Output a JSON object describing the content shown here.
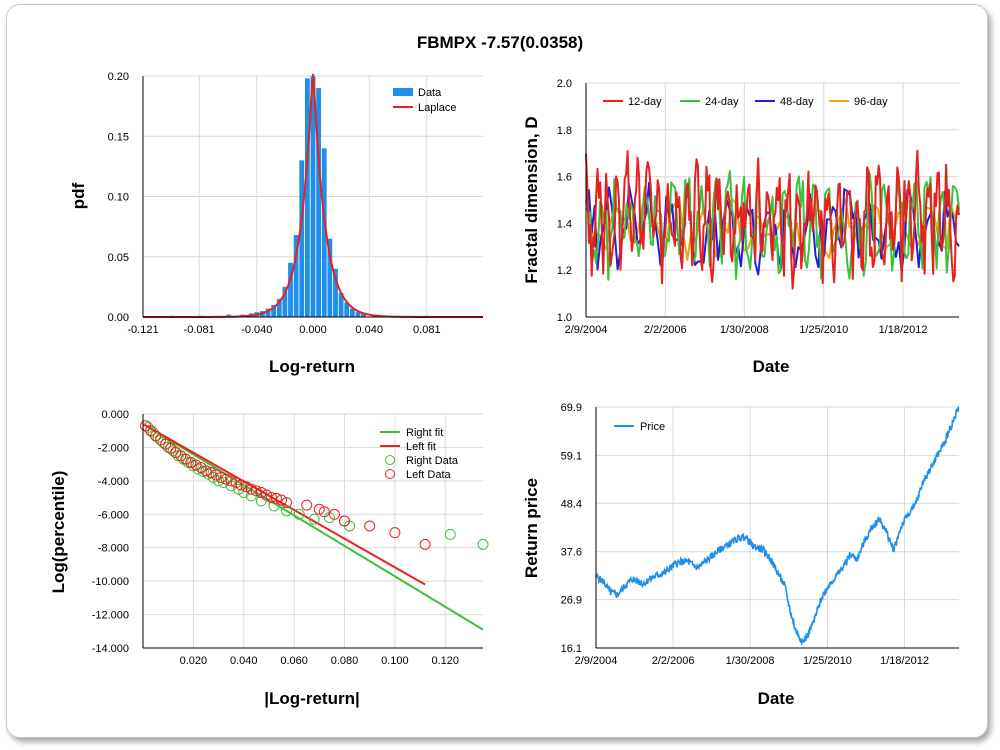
{
  "title": "FBMPX -7.57(0.0358)",
  "chart_data": [
    {
      "id": "pdf",
      "type": "bar",
      "xlabel": "Log-return",
      "ylabel": "pdf",
      "xlim": [
        -0.121,
        0.121
      ],
      "ylim": [
        0,
        0.2
      ],
      "xticks": [
        "-0.121",
        "-0.081",
        "-0.040",
        "0.000",
        "0.040",
        "0.081"
      ],
      "yticks": [
        "0.00",
        "0.05",
        "0.10",
        "0.15",
        "0.20"
      ],
      "legend_position": "top-right",
      "series": [
        {
          "name": "Data",
          "color": "#1f8fea"
        },
        {
          "name": "Laplace",
          "color": "#e8201e"
        }
      ],
      "bar_width": 0.004,
      "bins": [
        {
          "x": -0.1,
          "y": 0.001
        },
        {
          "x": -0.08,
          "y": 0.001
        },
        {
          "x": -0.06,
          "y": 0.002
        },
        {
          "x": -0.05,
          "y": 0.002
        },
        {
          "x": -0.044,
          "y": 0.003
        },
        {
          "x": -0.04,
          "y": 0.004
        },
        {
          "x": -0.036,
          "y": 0.005
        },
        {
          "x": -0.032,
          "y": 0.007
        },
        {
          "x": -0.028,
          "y": 0.01
        },
        {
          "x": -0.024,
          "y": 0.015
        },
        {
          "x": -0.02,
          "y": 0.025
        },
        {
          "x": -0.016,
          "y": 0.045
        },
        {
          "x": -0.012,
          "y": 0.068
        },
        {
          "x": -0.008,
          "y": 0.13
        },
        {
          "x": -0.004,
          "y": 0.198
        },
        {
          "x": 0.0,
          "y": 0.2
        },
        {
          "x": 0.004,
          "y": 0.19
        },
        {
          "x": 0.008,
          "y": 0.14
        },
        {
          "x": 0.012,
          "y": 0.065
        },
        {
          "x": 0.016,
          "y": 0.04
        },
        {
          "x": 0.02,
          "y": 0.02
        },
        {
          "x": 0.024,
          "y": 0.012
        },
        {
          "x": 0.028,
          "y": 0.007
        },
        {
          "x": 0.032,
          "y": 0.004
        },
        {
          "x": 0.036,
          "y": 0.003
        },
        {
          "x": 0.044,
          "y": 0.002
        },
        {
          "x": 0.06,
          "y": 0.001
        },
        {
          "x": 0.08,
          "y": 0.001
        }
      ],
      "laplace": {
        "mu": 0.0,
        "b": 0.0085
      }
    },
    {
      "id": "fractal",
      "type": "line",
      "xlabel": "Date",
      "ylabel": "Fractal dimension, D",
      "xticks": [
        "2/9/2004",
        "2/2/2006",
        "1/30/2008",
        "1/25/2010",
        "1/18/2012"
      ],
      "x_range": [
        "2/9/2004",
        "2013-09"
      ],
      "ylim": [
        1.0,
        2.0
      ],
      "yticks": [
        "1.0",
        "1.2",
        "1.4",
        "1.6",
        "1.8",
        "2.0"
      ],
      "legend_position": "top",
      "series": [
        {
          "name": "12-day",
          "color": "#e8201e",
          "mean": 1.42,
          "amp": 0.26,
          "period": 12
        },
        {
          "name": "24-day",
          "color": "#3cc13c",
          "mean": 1.4,
          "amp": 0.22,
          "period": 24
        },
        {
          "name": "48-day",
          "color": "#1f1fd6",
          "mean": 1.38,
          "amp": 0.18,
          "period": 48
        },
        {
          "name": "96-day",
          "color": "#f0a20c",
          "mean": 1.38,
          "amp": 0.12,
          "period": 96
        }
      ]
    },
    {
      "id": "tail",
      "type": "scatter",
      "xlabel": "|Log-return|",
      "ylabel": "Log(percentile)",
      "xlim": [
        0,
        0.135
      ],
      "ylim": [
        -14.0,
        0.0
      ],
      "xticks": [
        "0.020",
        "0.040",
        "0.060",
        "0.080",
        "0.100",
        "0.120"
      ],
      "yticks": [
        "0.000",
        "-2.000",
        "-4.000",
        "-6.000",
        "-8.000",
        "-10.000",
        "-12.000",
        "-14.000"
      ],
      "legend_position": "top-right",
      "series": [
        {
          "name": "Right fit",
          "kind": "line",
          "color": "#3cc13c",
          "points": [
            [
              0,
              -0.6
            ],
            [
              0.135,
              -12.9
            ]
          ]
        },
        {
          "name": "Left fit",
          "kind": "line",
          "color": "#e8201e",
          "points": [
            [
              0,
              -0.6
            ],
            [
              0.112,
              -10.2
            ]
          ]
        },
        {
          "name": "Right Data",
          "kind": "scatter",
          "color": "#3cc13c",
          "points": [
            [
              0.002,
              -0.8
            ],
            [
              0.004,
              -1.1
            ],
            [
              0.006,
              -1.4
            ],
            [
              0.008,
              -1.7
            ],
            [
              0.01,
              -2.0
            ],
            [
              0.012,
              -2.2
            ],
            [
              0.014,
              -2.5
            ],
            [
              0.016,
              -2.7
            ],
            [
              0.018,
              -2.9
            ],
            [
              0.02,
              -3.1
            ],
            [
              0.022,
              -3.3
            ],
            [
              0.024,
              -3.45
            ],
            [
              0.026,
              -3.6
            ],
            [
              0.028,
              -3.8
            ],
            [
              0.03,
              -4.0
            ],
            [
              0.032,
              -4.1
            ],
            [
              0.035,
              -4.3
            ],
            [
              0.038,
              -4.5
            ],
            [
              0.04,
              -4.7
            ],
            [
              0.043,
              -4.9
            ],
            [
              0.047,
              -5.2
            ],
            [
              0.052,
              -5.5
            ],
            [
              0.057,
              -5.8
            ],
            [
              0.062,
              -6.0
            ],
            [
              0.068,
              -6.3
            ],
            [
              0.074,
              -6.2
            ],
            [
              0.08,
              -6.4
            ],
            [
              0.082,
              -6.7
            ],
            [
              0.122,
              -7.2
            ],
            [
              0.135,
              -7.8
            ]
          ]
        },
        {
          "name": "Left Data",
          "kind": "scatter",
          "color": "#e8201e",
          "points": [
            [
              0.001,
              -0.7
            ],
            [
              0.003,
              -1.0
            ],
            [
              0.005,
              -1.3
            ],
            [
              0.007,
              -1.55
            ],
            [
              0.009,
              -1.8
            ],
            [
              0.011,
              -2.05
            ],
            [
              0.013,
              -2.3
            ],
            [
              0.015,
              -2.5
            ],
            [
              0.017,
              -2.7
            ],
            [
              0.019,
              -2.9
            ],
            [
              0.021,
              -3.05
            ],
            [
              0.023,
              -3.2
            ],
            [
              0.025,
              -3.4
            ],
            [
              0.027,
              -3.5
            ],
            [
              0.029,
              -3.65
            ],
            [
              0.031,
              -3.8
            ],
            [
              0.033,
              -3.9
            ],
            [
              0.035,
              -4.0
            ],
            [
              0.037,
              -4.1
            ],
            [
              0.039,
              -4.25
            ],
            [
              0.041,
              -4.35
            ],
            [
              0.043,
              -4.5
            ],
            [
              0.045,
              -4.6
            ],
            [
              0.047,
              -4.7
            ],
            [
              0.049,
              -4.85
            ],
            [
              0.051,
              -5.0
            ],
            [
              0.053,
              -5.05
            ],
            [
              0.055,
              -5.15
            ],
            [
              0.057,
              -5.3
            ],
            [
              0.065,
              -5.45
            ],
            [
              0.07,
              -5.7
            ],
            [
              0.072,
              -5.85
            ],
            [
              0.076,
              -6.0
            ],
            [
              0.08,
              -6.4
            ],
            [
              0.09,
              -6.7
            ],
            [
              0.1,
              -7.1
            ],
            [
              0.112,
              -7.8
            ]
          ]
        }
      ]
    },
    {
      "id": "price",
      "type": "line",
      "xlabel": "Date",
      "ylabel": "Return price",
      "xticks": [
        "2/9/2004",
        "2/2/2006",
        "1/30/2008",
        "1/25/2010",
        "1/18/2012"
      ],
      "x_range": [
        "2/9/2004",
        "2013-09"
      ],
      "ylim": [
        16.1,
        69.9
      ],
      "yticks": [
        "16.1",
        "26.9",
        "37.6",
        "48.4",
        "59.1",
        "69.9"
      ],
      "legend_position": "top-left",
      "series": [
        {
          "name": "Price",
          "color": "#1f8fea",
          "points": [
            [
              0,
              32
            ],
            [
              0.02,
              31
            ],
            [
              0.04,
              28.5
            ],
            [
              0.06,
              28
            ],
            [
              0.08,
              30
            ],
            [
              0.1,
              31.5
            ],
            [
              0.13,
              30.5
            ],
            [
              0.16,
              32
            ],
            [
              0.19,
              33
            ],
            [
              0.22,
              35
            ],
            [
              0.25,
              35.5
            ],
            [
              0.28,
              34
            ],
            [
              0.31,
              36
            ],
            [
              0.34,
              38
            ],
            [
              0.37,
              39.5
            ],
            [
              0.39,
              40.5
            ],
            [
              0.41,
              41
            ],
            [
              0.43,
              39
            ],
            [
              0.46,
              38
            ],
            [
              0.48,
              36
            ],
            [
              0.5,
              33
            ],
            [
              0.52,
              30
            ],
            [
              0.53,
              26
            ],
            [
              0.55,
              20
            ],
            [
              0.57,
              17.5
            ],
            [
              0.58,
              18.5
            ],
            [
              0.6,
              22
            ],
            [
              0.62,
              27
            ],
            [
              0.64,
              30
            ],
            [
              0.66,
              32
            ],
            [
              0.68,
              34
            ],
            [
              0.7,
              37
            ],
            [
              0.72,
              36
            ],
            [
              0.74,
              40
            ],
            [
              0.76,
              43
            ],
            [
              0.78,
              45
            ],
            [
              0.8,
              42
            ],
            [
              0.82,
              38
            ],
            [
              0.84,
              43
            ],
            [
              0.86,
              46
            ],
            [
              0.88,
              48
            ],
            [
              0.9,
              53
            ],
            [
              0.92,
              56
            ],
            [
              0.94,
              59
            ],
            [
              0.96,
              62
            ],
            [
              0.98,
              66
            ],
            [
              1.0,
              70
            ]
          ]
        }
      ]
    }
  ]
}
